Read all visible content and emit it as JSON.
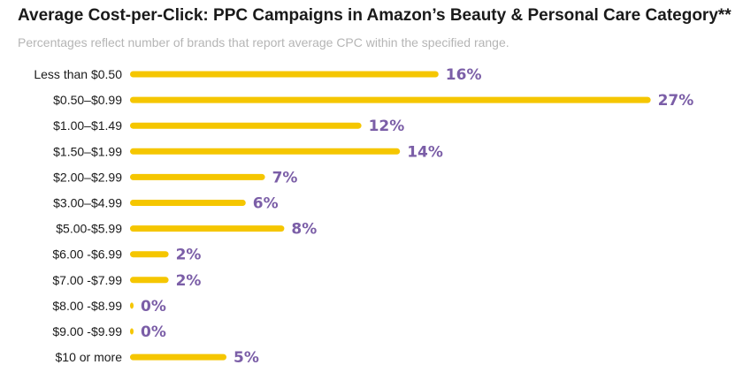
{
  "chart_data": {
    "type": "bar",
    "orientation": "horizontal",
    "title": "Average Cost-per-Click: PPC Campaigns in Amazon’s Beauty & Personal Care Category**",
    "subtitle": "Percentages reflect number of brands that report average CPC within the specified range.",
    "categories": [
      "Less than $0.50",
      "$0.50–$0.99",
      "$1.00–$1.49",
      "$1.50–$1.99",
      "$2.00–$2.99",
      "$3.00–$4.99",
      "$5.00-$5.99",
      "$6.00 -$6.99",
      "$7.00 -$7.99",
      "$8.00 -$8.99",
      "$9.00 -$9.99",
      "$10 or more"
    ],
    "values": [
      16,
      27,
      12,
      14,
      7,
      6,
      8,
      2,
      2,
      0,
      0,
      5
    ],
    "value_labels": [
      "16%",
      "27%",
      "12%",
      "14%",
      "7%",
      "6%",
      "8%",
      "2%",
      "2%",
      "0%",
      "0%",
      "5%"
    ],
    "value_unit": "%",
    "xlim": [
      0,
      27
    ],
    "xlabel": "",
    "ylabel": "",
    "grid": false,
    "legend": "none",
    "colors": {
      "bar": "#f5c600",
      "value_text": "#7b5ea7",
      "title": "#1a1a1a",
      "subtitle": "#b5b5b5"
    }
  }
}
